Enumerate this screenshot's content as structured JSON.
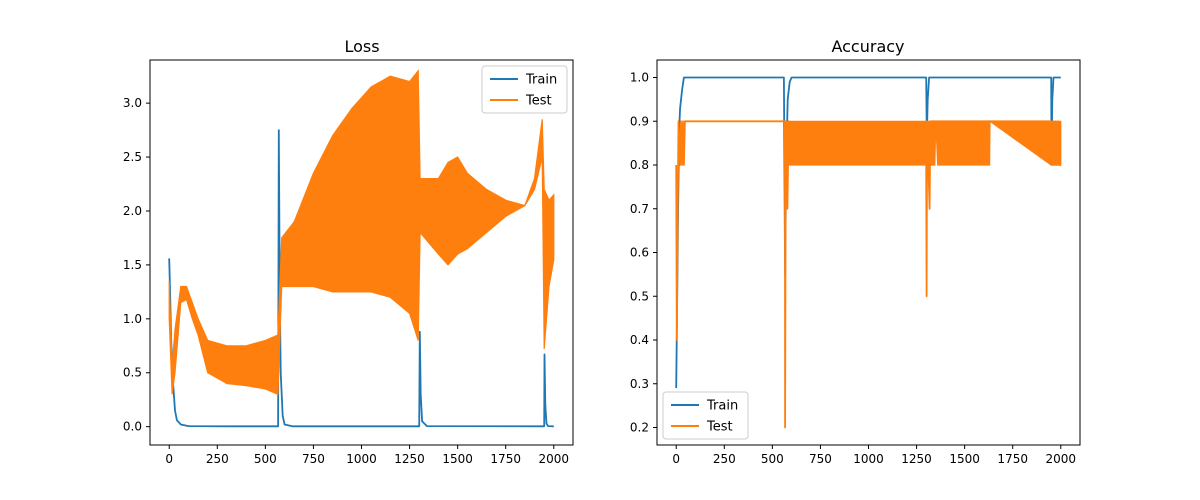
{
  "chart_data": [
    {
      "type": "line",
      "title": "Loss",
      "xlabel": "",
      "ylabel": "",
      "xlim": [
        -100,
        2100
      ],
      "ylim": [
        -0.17,
        3.4
      ],
      "xticks": [
        0,
        250,
        500,
        750,
        1000,
        1250,
        1500,
        1750,
        2000
      ],
      "yticks": [
        0.0,
        0.5,
        1.0,
        1.5,
        2.0,
        2.5,
        3.0
      ],
      "ytick_labels": [
        "0.0",
        "0.5",
        "1.0",
        "1.5",
        "2.0",
        "2.5",
        "3.0"
      ],
      "legend": {
        "placement": "top-right",
        "entries": [
          "Train",
          "Test"
        ]
      },
      "series": [
        {
          "name": "Train",
          "color": "#1f77b4",
          "points": [
            [
              0,
              1.56
            ],
            [
              5,
              1.2
            ],
            [
              10,
              0.8
            ],
            [
              20,
              0.4
            ],
            [
              30,
              0.15
            ],
            [
              40,
              0.06
            ],
            [
              60,
              0.02
            ],
            [
              100,
              0.005
            ],
            [
              300,
              0.003
            ],
            [
              566,
              0.003
            ],
            [
              570,
              2.75
            ],
            [
              575,
              1.2
            ],
            [
              580,
              0.5
            ],
            [
              590,
              0.1
            ],
            [
              600,
              0.02
            ],
            [
              640,
              0.003
            ],
            [
              1300,
              0.003
            ],
            [
              1303,
              0.88
            ],
            [
              1308,
              0.3
            ],
            [
              1315,
              0.05
            ],
            [
              1340,
              0.005
            ],
            [
              1950,
              0.003
            ],
            [
              1952,
              0.67
            ],
            [
              1956,
              0.2
            ],
            [
              1962,
              0.03
            ],
            [
              1970,
              0.005
            ],
            [
              2000,
              0.003
            ]
          ]
        },
        {
          "name": "Test",
          "color": "#ff7f0e",
          "band": [
            [
              0,
              1.0,
              1.35
            ],
            [
              15,
              0.3,
              0.55
            ],
            [
              30,
              0.5,
              0.9
            ],
            [
              60,
              1.15,
              1.3
            ],
            [
              90,
              1.18,
              1.3
            ],
            [
              120,
              1.0,
              1.15
            ],
            [
              150,
              0.85,
              1.0
            ],
            [
              200,
              0.5,
              0.8
            ],
            [
              300,
              0.4,
              0.75
            ],
            [
              400,
              0.38,
              0.75
            ],
            [
              500,
              0.35,
              0.8
            ],
            [
              565,
              0.3,
              0.85
            ],
            [
              585,
              1.3,
              1.75
            ],
            [
              650,
              1.3,
              1.9
            ],
            [
              750,
              1.3,
              2.35
            ],
            [
              850,
              1.25,
              2.7
            ],
            [
              950,
              1.25,
              2.95
            ],
            [
              1050,
              1.25,
              3.15
            ],
            [
              1150,
              1.2,
              3.25
            ],
            [
              1250,
              1.05,
              3.2
            ],
            [
              1295,
              0.8,
              3.3
            ],
            [
              1305,
              1.8,
              2.3
            ],
            [
              1400,
              1.6,
              2.3
            ],
            [
              1450,
              1.5,
              2.45
            ],
            [
              1500,
              1.6,
              2.5
            ],
            [
              1550,
              1.65,
              2.35
            ],
            [
              1650,
              1.8,
              2.2
            ],
            [
              1750,
              1.95,
              2.1
            ],
            [
              1850,
              2.05,
              2.05
            ],
            [
              1900,
              2.2,
              2.3
            ],
            [
              1940,
              2.5,
              2.85
            ],
            [
              1950,
              0.72,
              2.2
            ],
            [
              1975,
              1.3,
              2.1
            ],
            [
              2000,
              1.55,
              2.15
            ]
          ]
        }
      ]
    },
    {
      "type": "line",
      "title": "Accuracy",
      "xlabel": "",
      "ylabel": "",
      "xlim": [
        -100,
        2100
      ],
      "ylim": [
        0.16,
        1.04
      ],
      "xticks": [
        0,
        250,
        500,
        750,
        1000,
        1250,
        1500,
        1750,
        2000
      ],
      "yticks": [
        0.2,
        0.3,
        0.4,
        0.5,
        0.6,
        0.7,
        0.8,
        0.9,
        1.0
      ],
      "ytick_labels": [
        "0.2",
        "0.3",
        "0.4",
        "0.5",
        "0.6",
        "0.7",
        "0.8",
        "0.9",
        "1.0"
      ],
      "legend": {
        "placement": "bottom-left",
        "entries": [
          "Train",
          "Test"
        ]
      },
      "series": [
        {
          "name": "Train",
          "color": "#1f77b4",
          "points": [
            [
              0,
              0.29
            ],
            [
              5,
              0.5
            ],
            [
              10,
              0.7
            ],
            [
              15,
              0.88
            ],
            [
              20,
              0.93
            ],
            [
              30,
              0.97
            ],
            [
              40,
              1.0
            ],
            [
              560,
              1.0
            ],
            [
              566,
              0.55
            ],
            [
              572,
              0.8
            ],
            [
              580,
              0.95
            ],
            [
              590,
              0.99
            ],
            [
              600,
              1.0
            ],
            [
              1300,
              1.0
            ],
            [
              1303,
              0.86
            ],
            [
              1308,
              0.95
            ],
            [
              1315,
              1.0
            ],
            [
              1950,
              1.0
            ],
            [
              1952,
              0.81
            ],
            [
              1956,
              0.95
            ],
            [
              1962,
              1.0
            ],
            [
              2000,
              1.0
            ]
          ]
        },
        {
          "name": "Test",
          "color": "#ff7f0e",
          "points": [
            [
              0,
              0.8
            ],
            [
              3,
              0.4
            ],
            [
              6,
              0.6
            ],
            [
              10,
              0.8
            ],
            [
              12,
              0.9
            ],
            [
              20,
              0.8
            ],
            [
              25,
              0.9
            ],
            [
              30,
              0.8
            ],
            [
              35,
              0.9
            ],
            [
              40,
              0.8
            ],
            [
              45,
              0.9
            ],
            [
              565,
              0.9
            ],
            [
              566,
              0.2
            ],
            [
              570,
              0.9
            ],
            [
              578,
              0.7
            ],
            [
              585,
              0.9
            ],
            [
              1300,
              0.8
            ],
            [
              1302,
              0.5
            ],
            [
              1305,
              0.9
            ],
            [
              1318,
              0.7
            ],
            [
              1322,
              0.9
            ],
            [
              1950,
              0.9
            ],
            [
              1952,
              0.8
            ],
            [
              1960,
              0.9
            ],
            [
              1965,
              0.8
            ],
            [
              1972,
              0.9
            ],
            [
              1978,
              0.8
            ],
            [
              1985,
              0.9
            ],
            [
              1990,
              0.8
            ],
            [
              2000,
              0.8
            ]
          ],
          "band": [
            [
              566,
              0.8,
              0.9
            ],
            [
              1345,
              0.8,
              0.9
            ],
            [
              1350,
              0.9,
              0.9
            ],
            [
              1360,
              0.8,
              0.9
            ],
            [
              1630,
              0.8,
              0.9
            ],
            [
              1632,
              0.9,
              0.9
            ],
            [
              1950,
              0.8,
              0.9
            ],
            [
              2000,
              0.8,
              0.9
            ]
          ]
        }
      ]
    }
  ]
}
